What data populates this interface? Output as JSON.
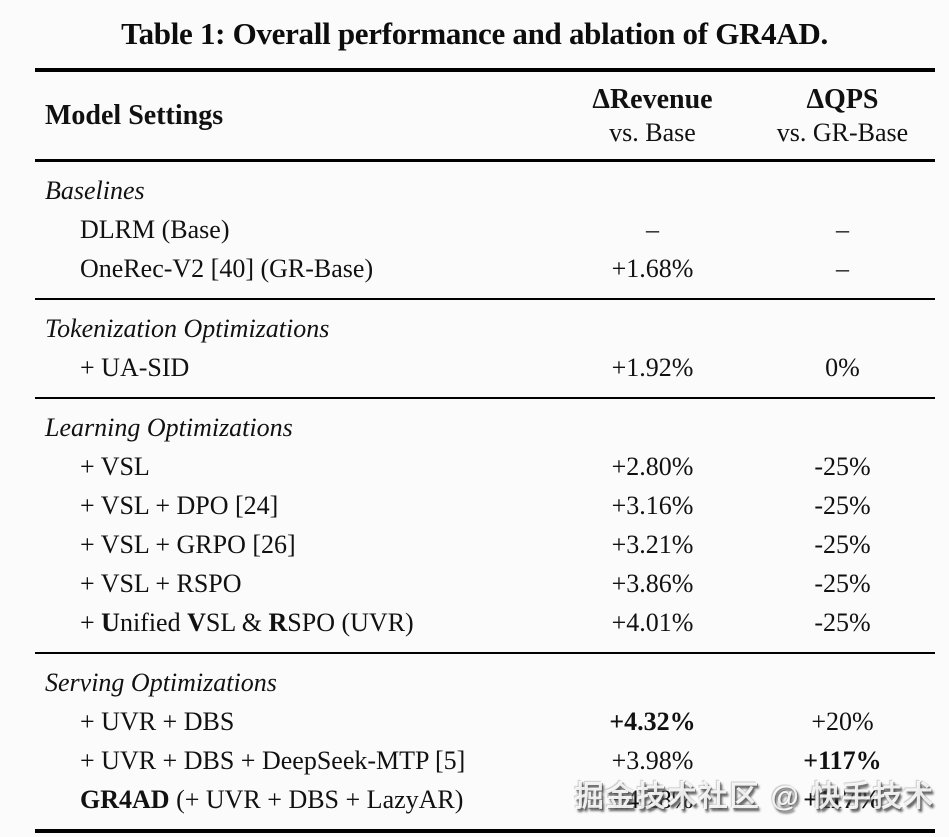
{
  "caption": "Table 1: Overall performance and ablation of GR4AD.",
  "header": {
    "model_settings": "Model Settings",
    "revenue_title": "ΔRevenue",
    "revenue_sub": "vs. Base",
    "qps_title": "ΔQPS",
    "qps_sub": "vs. GR-Base"
  },
  "sections": [
    {
      "name": "Baselines",
      "rows": [
        {
          "label": [
            {
              "text": "DLRM (Base)",
              "bold": false
            }
          ],
          "revenue": {
            "text": "–",
            "bold": false
          },
          "qps": {
            "text": "–",
            "bold": false
          }
        },
        {
          "label": [
            {
              "text": "OneRec-V2 [40] (GR-Base)",
              "bold": false
            }
          ],
          "revenue": {
            "text": "+1.68%",
            "bold": false
          },
          "qps": {
            "text": "–",
            "bold": false
          }
        }
      ]
    },
    {
      "name": "Tokenization Optimizations",
      "rows": [
        {
          "label": [
            {
              "text": "+ UA-SID",
              "bold": false
            }
          ],
          "revenue": {
            "text": "+1.92%",
            "bold": false
          },
          "qps": {
            "text": "0%",
            "bold": false
          }
        }
      ]
    },
    {
      "name": "Learning Optimizations",
      "rows": [
        {
          "label": [
            {
              "text": "+ VSL",
              "bold": false
            }
          ],
          "revenue": {
            "text": "+2.80%",
            "bold": false
          },
          "qps": {
            "text": "-25%",
            "bold": false
          }
        },
        {
          "label": [
            {
              "text": "+ VSL + DPO [24]",
              "bold": false
            }
          ],
          "revenue": {
            "text": "+3.16%",
            "bold": false
          },
          "qps": {
            "text": "-25%",
            "bold": false
          }
        },
        {
          "label": [
            {
              "text": "+ VSL + GRPO [26]",
              "bold": false
            }
          ],
          "revenue": {
            "text": "+3.21%",
            "bold": false
          },
          "qps": {
            "text": "-25%",
            "bold": false
          }
        },
        {
          "label": [
            {
              "text": "+ VSL + RSPO",
              "bold": false
            }
          ],
          "revenue": {
            "text": "+3.86%",
            "bold": false
          },
          "qps": {
            "text": "-25%",
            "bold": false
          }
        },
        {
          "label": [
            {
              "text": "+ ",
              "bold": false
            },
            {
              "text": "U",
              "bold": true
            },
            {
              "text": "nified ",
              "bold": false
            },
            {
              "text": "V",
              "bold": true
            },
            {
              "text": "SL & ",
              "bold": false
            },
            {
              "text": "R",
              "bold": true
            },
            {
              "text": "SPO (UVR)",
              "bold": false
            }
          ],
          "revenue": {
            "text": "+4.01%",
            "bold": false
          },
          "qps": {
            "text": "-25%",
            "bold": false
          }
        }
      ]
    },
    {
      "name": "Serving Optimizations",
      "rows": [
        {
          "label": [
            {
              "text": "+ UVR + DBS",
              "bold": false
            }
          ],
          "revenue": {
            "text": "+4.32%",
            "bold": true
          },
          "qps": {
            "text": "+20%",
            "bold": false
          }
        },
        {
          "label": [
            {
              "text": "+ UVR + DBS + DeepSeek-MTP [5]",
              "bold": false
            }
          ],
          "revenue": {
            "text": "+3.98%",
            "bold": false
          },
          "qps": {
            "text": "+117%",
            "bold": true
          }
        },
        {
          "label": [
            {
              "text": "GR4AD",
              "bold": true
            },
            {
              "text": " (+ UVR + DBS + LazyAR)",
              "bold": false
            }
          ],
          "revenue": {
            "text": "+4.28%",
            "bold": false
          },
          "qps": {
            "text": "+117%",
            "bold": true
          }
        }
      ]
    }
  ],
  "watermark": "掘金技术社区 @ 快手技术",
  "colors": {
    "text": "#111111",
    "rule": "#000000",
    "background": "#fbfbfb"
  }
}
